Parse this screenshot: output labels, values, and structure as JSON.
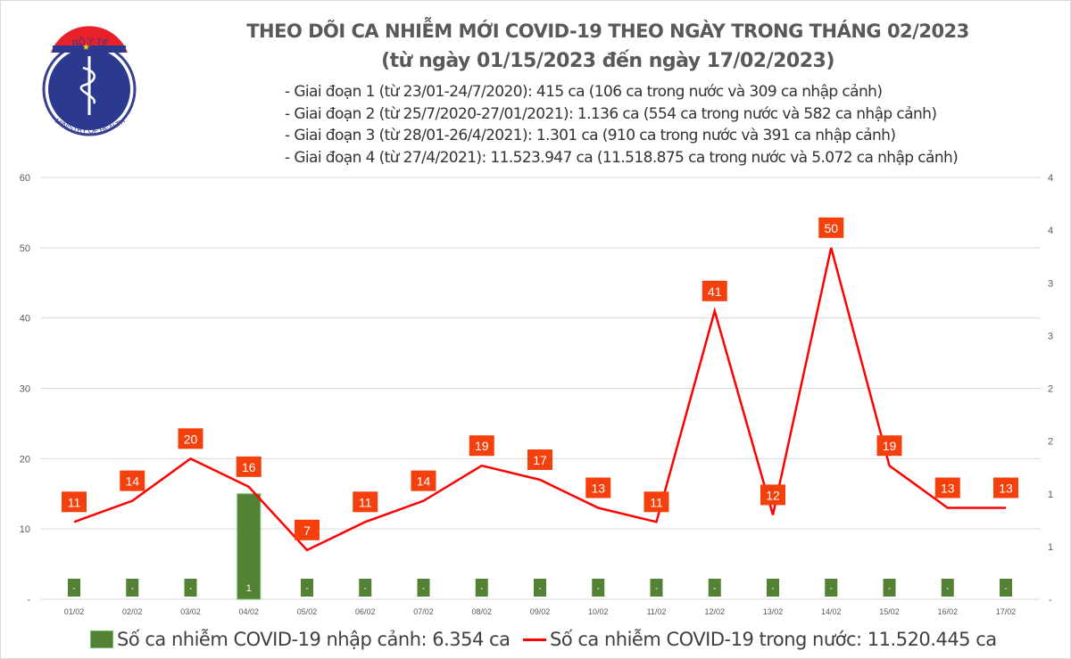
{
  "header": {
    "logo_text_top": "BỘ Y TẾ",
    "logo_text_bottom": "MINISTRY OF HEALTH",
    "title": "THEO DÕI CA NHIỄM MỚI COVID-19 THEO NGÀY TRONG THÁNG 02/2023",
    "subtitle": "(từ ngày 01/15/2023 đến ngày 17/02/2023)",
    "stages": [
      "- Giai đoạn 1 (từ 23/01-24/7/2020): 415 ca (106 ca trong nước và 309 ca nhập cảnh)",
      "- Giai đoạn 2 (từ 25/7/2020-27/01/2021): 1.136 ca (554 ca trong nước và 582 ca nhập cảnh)",
      "- Giai đoạn 3 (từ 28/01-26/4/2021): 1.301 ca (910 ca trong nước và 391 ca nhập cảnh)",
      "- Giai đoạn 4 (từ 27/4/2021): 11.523.947 ca (11.518.875 ca trong nước và 5.072 ca nhập cảnh)"
    ]
  },
  "chart_data": {
    "type": "bar+line",
    "categories": [
      "01/02",
      "02/02",
      "03/02",
      "04/02",
      "05/02",
      "06/02",
      "07/02",
      "08/02",
      "09/02",
      "10/02",
      "11/02",
      "12/02",
      "13/02",
      "14/02",
      "15/02",
      "16/02",
      "17/02"
    ],
    "series": [
      {
        "name": "Số ca nhiễm COVID-19 nhập cảnh: 6.354 ca",
        "type": "bar",
        "axis": "right",
        "color": "#548235",
        "values": [
          0,
          0,
          0,
          1,
          0,
          0,
          0,
          0,
          0,
          0,
          0,
          0,
          0,
          0,
          0,
          0,
          0
        ],
        "labels": [
          "-",
          "-",
          "-",
          "1",
          "-",
          "-",
          "-",
          "-",
          "-",
          "-",
          "-",
          "-",
          "-",
          "-",
          "-",
          "-",
          "-"
        ]
      },
      {
        "name": "Số ca nhiễm COVID-19 trong nước: 11.520.445 ca",
        "type": "line",
        "axis": "left",
        "color": "#ff0000",
        "label_color": "#f4400c",
        "values": [
          11,
          14,
          20,
          16,
          7,
          11,
          14,
          19,
          17,
          13,
          11,
          41,
          12,
          50,
          19,
          13,
          13
        ]
      }
    ],
    "left_axis": {
      "ylim": [
        0,
        60
      ],
      "ticks": [
        "-",
        "10",
        "20",
        "30",
        "40",
        "50",
        "60"
      ]
    },
    "right_axis": {
      "ylim": [
        0,
        4
      ],
      "ticks": [
        "-",
        "1",
        "1",
        "2",
        "2",
        "3",
        "3",
        "4",
        "4"
      ]
    },
    "grid": true,
    "legend": "bottom"
  }
}
